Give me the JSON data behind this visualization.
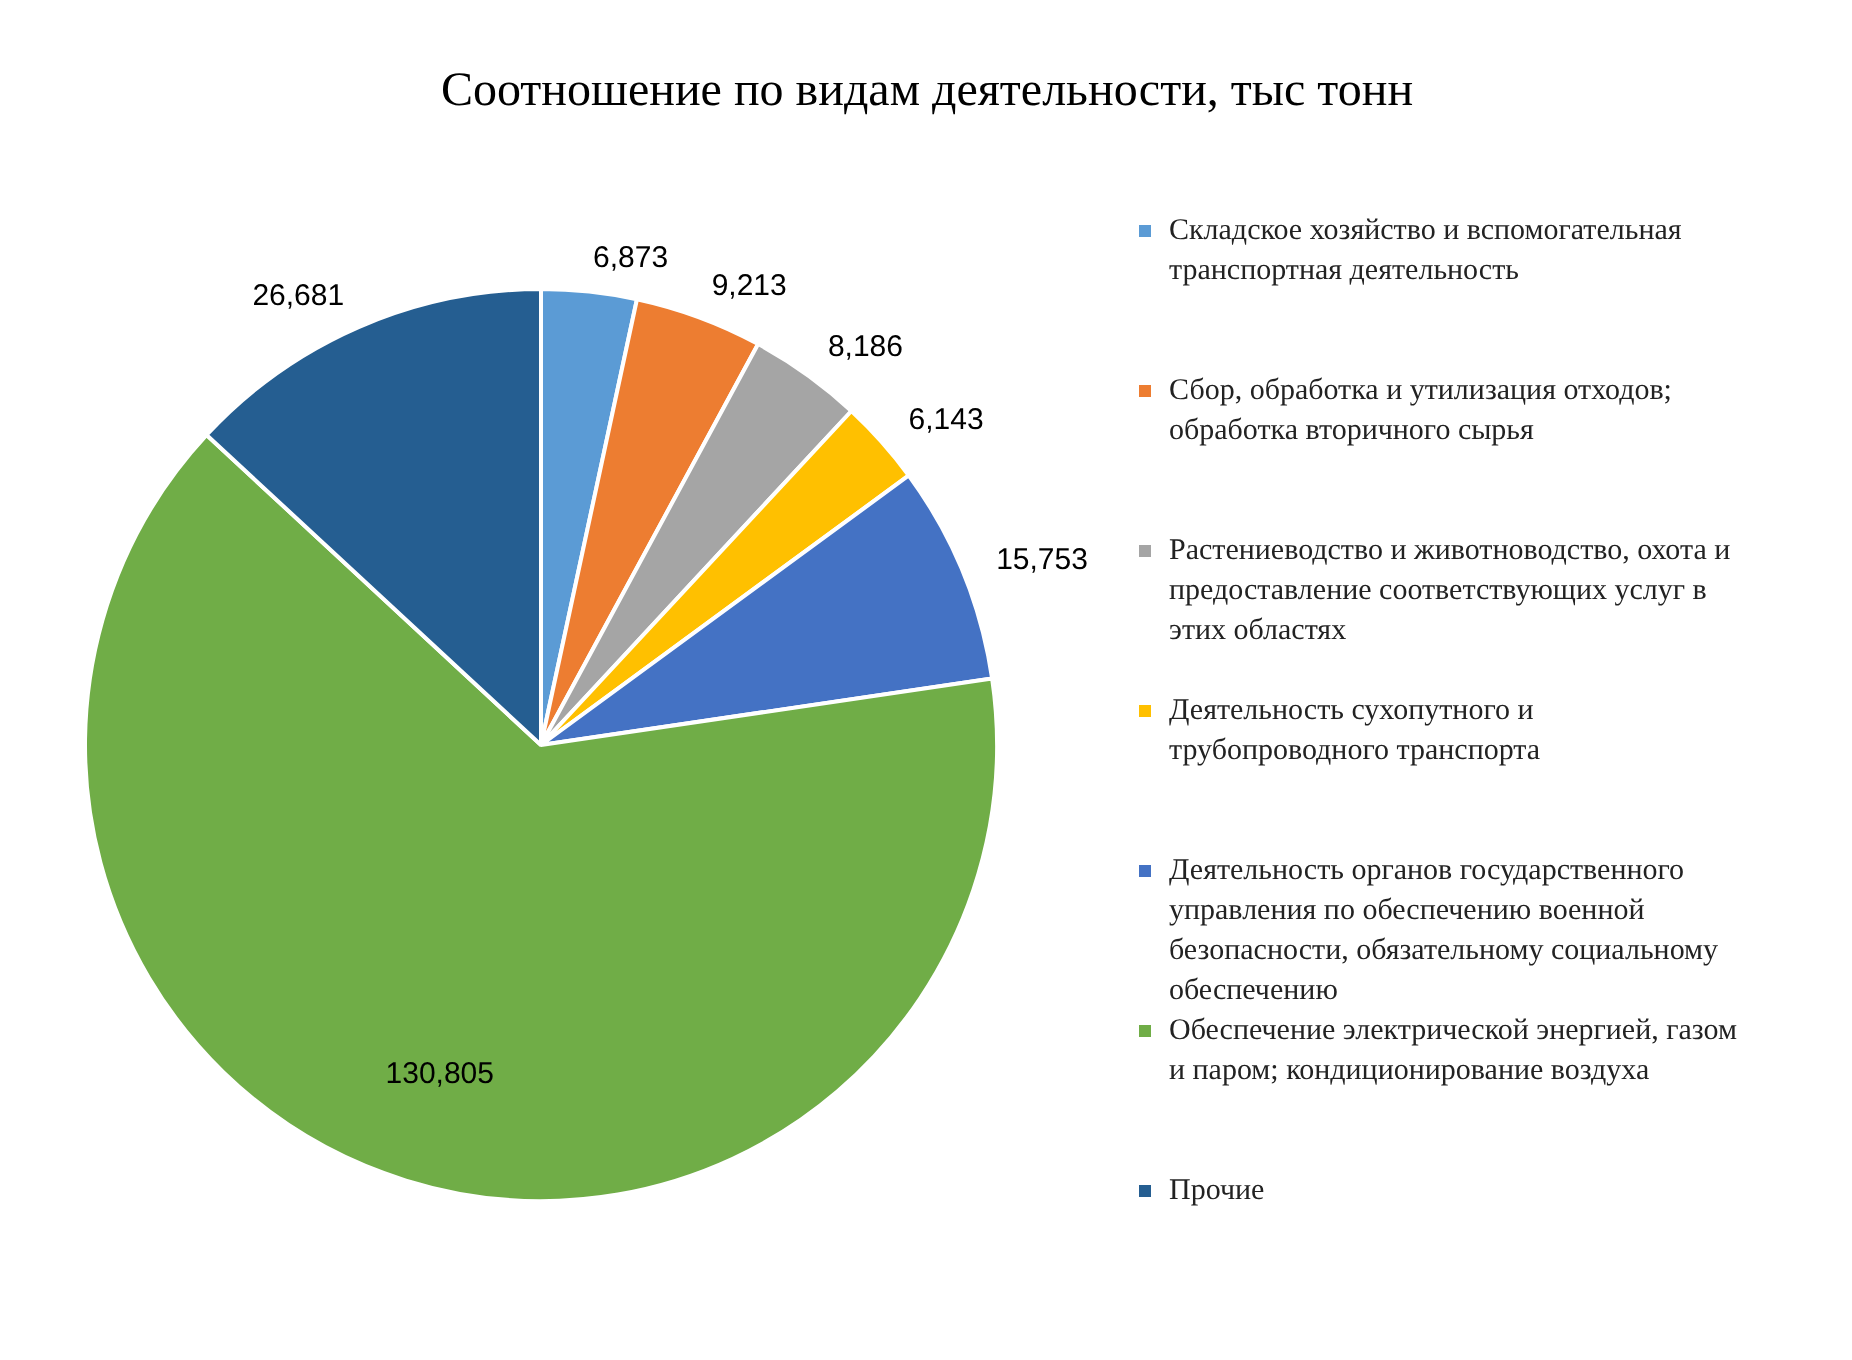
{
  "chart_data": {
    "type": "pie",
    "title": "Соотношение по видам деятельности, тыс тонн",
    "categories": [
      "Складское хозяйство и вспомогательная транспортная деятельность",
      "Сбор, обработка и утилизация отходов; обработка вторичного сырья",
      "Растениеводство и животноводство, охота и предоставление соответствующих услуг в этих областях",
      "Деятельность сухопутного и трубопроводного транспорта",
      "Деятельность органов государственного управления по обеспечению военной безопасности, обязательному социальному обеспечению",
      "Обеспечение электрической энергией, газом и паром; кондиционирование воздуха",
      "Прочие"
    ],
    "values": [
      6873,
      9213,
      8186,
      6143,
      15753,
      130805,
      26681
    ],
    "value_labels": [
      "6,873",
      "9,213",
      "8,186",
      "6,143",
      "15,753",
      "130,805",
      "26,681"
    ],
    "colors": [
      "#5b9bd5",
      "#ed7d31",
      "#a5a5a5",
      "#ffc000",
      "#4472c4",
      "#70ad47",
      "#255e91"
    ],
    "legend": "right"
  }
}
